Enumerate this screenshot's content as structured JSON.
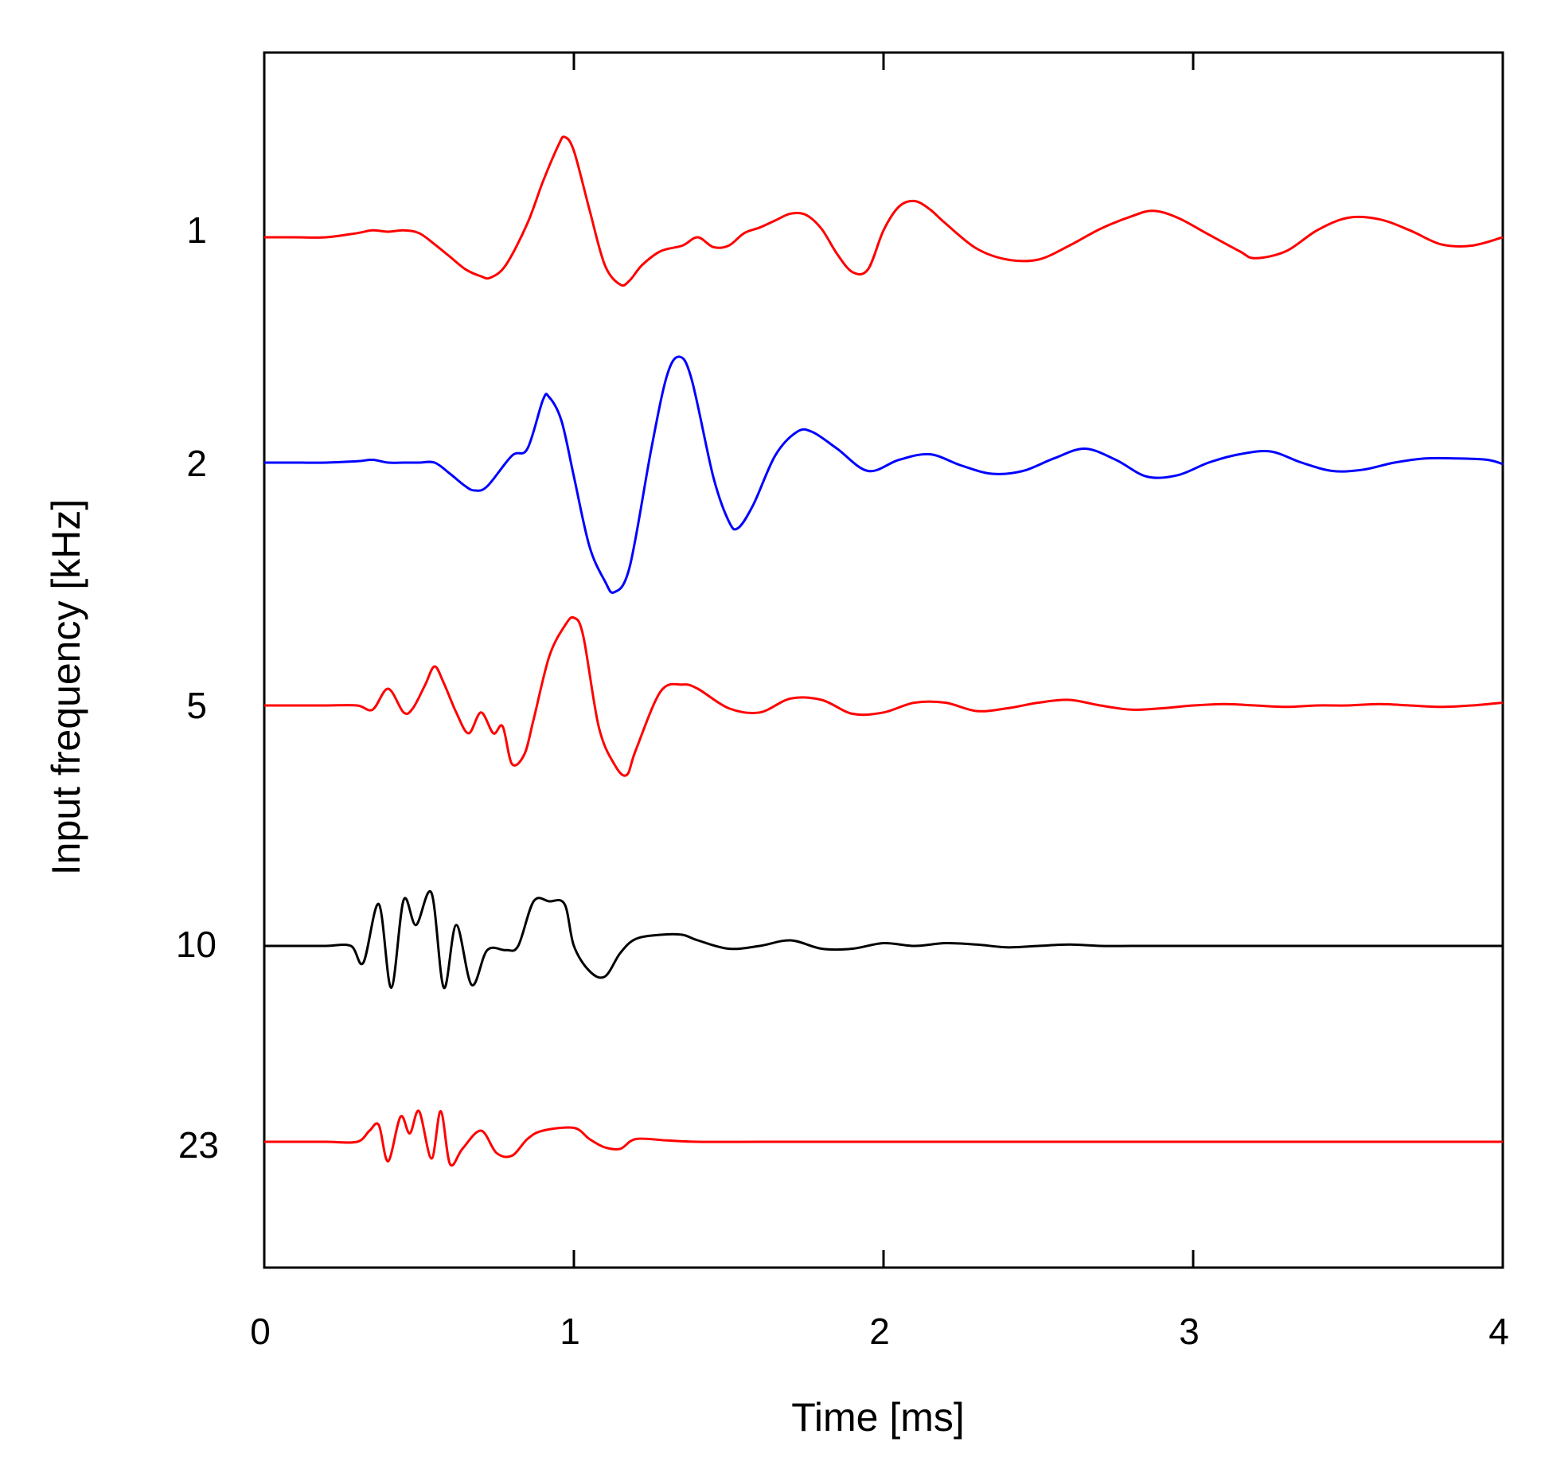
{
  "chart_data": {
    "type": "line",
    "title": "",
    "xlabel": "Time [ms]",
    "ylabel": "Input frequency [kHz]",
    "xlim": [
      0,
      4
    ],
    "x_ticks": [
      "0",
      "1",
      "2",
      "3",
      "4"
    ],
    "grid": false,
    "legend": "none",
    "series": [
      {
        "name": "1",
        "color": "#ff0000",
        "x": [
          0,
          0.1,
          0.2,
          0.3,
          0.35,
          0.4,
          0.45,
          0.5,
          0.55,
          0.6,
          0.65,
          0.7,
          0.73,
          0.78,
          0.85,
          0.9,
          0.95,
          0.97,
          1.0,
          1.05,
          1.1,
          1.15,
          1.18,
          1.22,
          1.28,
          1.35,
          1.4,
          1.45,
          1.5,
          1.55,
          1.6,
          1.65,
          1.7,
          1.75,
          1.8,
          1.85,
          1.9,
          1.95,
          2.0,
          2.05,
          2.1,
          2.15,
          2.2,
          2.3,
          2.4,
          2.5,
          2.6,
          2.7,
          2.8,
          2.87,
          2.95,
          3.05,
          3.15,
          3.2,
          3.3,
          3.4,
          3.5,
          3.6,
          3.7,
          3.8,
          3.9,
          4.0
        ],
        "values": [
          0,
          0,
          0,
          0.03,
          0.05,
          0.04,
          0.05,
          0.03,
          -0.05,
          -0.14,
          -0.23,
          -0.28,
          -0.29,
          -0.2,
          0.1,
          0.4,
          0.66,
          0.72,
          0.62,
          0.2,
          -0.2,
          -0.34,
          -0.31,
          -0.2,
          -0.1,
          -0.06,
          0,
          -0.07,
          -0.06,
          0.03,
          0.07,
          0.12,
          0.17,
          0.16,
          0.06,
          -0.12,
          -0.25,
          -0.23,
          0.05,
          0.22,
          0.26,
          0.2,
          0.1,
          -0.08,
          -0.16,
          -0.16,
          -0.06,
          0.06,
          0.15,
          0.19,
          0.14,
          0.02,
          -0.1,
          -0.15,
          -0.1,
          0.05,
          0.14,
          0.13,
          0.05,
          -0.05,
          -0.06,
          0
        ]
      },
      {
        "name": "2",
        "color": "#0000ff",
        "x": [
          0,
          0.1,
          0.2,
          0.3,
          0.35,
          0.4,
          0.45,
          0.5,
          0.55,
          0.6,
          0.65,
          0.68,
          0.72,
          0.8,
          0.85,
          0.9,
          0.92,
          0.96,
          1.0,
          1.05,
          1.1,
          1.13,
          1.18,
          1.25,
          1.3,
          1.34,
          1.38,
          1.45,
          1.5,
          1.53,
          1.58,
          1.65,
          1.72,
          1.77,
          1.85,
          1.95,
          2.05,
          2.15,
          2.25,
          2.35,
          2.45,
          2.55,
          2.65,
          2.75,
          2.85,
          2.95,
          3.05,
          3.15,
          3.25,
          3.35,
          3.45,
          3.55,
          3.65,
          3.75,
          3.85,
          3.95,
          4.0
        ],
        "values": [
          0,
          0,
          0,
          0.01,
          0.02,
          0,
          0,
          0,
          0,
          -0.08,
          -0.17,
          -0.2,
          -0.17,
          0.05,
          0.1,
          0.45,
          0.47,
          0.3,
          -0.1,
          -0.6,
          -0.85,
          -0.93,
          -0.75,
          0.1,
          0.62,
          0.76,
          0.6,
          -0.1,
          -0.42,
          -0.47,
          -0.3,
          0.05,
          0.22,
          0.22,
          0.1,
          -0.06,
          0.02,
          0.06,
          -0.02,
          -0.08,
          -0.06,
          0.03,
          0.1,
          0.02,
          -0.1,
          -0.09,
          0,
          0.06,
          0.08,
          0.0,
          -0.06,
          -0.05,
          0,
          0.03,
          0.03,
          0.02,
          -0.01
        ]
      },
      {
        "name": "5",
        "color": "#ff0000",
        "x": [
          0,
          0.1,
          0.2,
          0.3,
          0.35,
          0.4,
          0.45,
          0.48,
          0.52,
          0.55,
          0.58,
          0.62,
          0.66,
          0.7,
          0.74,
          0.77,
          0.8,
          0.84,
          0.87,
          0.92,
          0.97,
          1.0,
          1.03,
          1.08,
          1.13,
          1.17,
          1.2,
          1.28,
          1.35,
          1.4,
          1.5,
          1.6,
          1.7,
          1.8,
          1.9,
          2.0,
          2.1,
          2.2,
          2.3,
          2.4,
          2.5,
          2.6,
          2.7,
          2.8,
          2.9,
          3.0,
          3.1,
          3.2,
          3.3,
          3.4,
          3.5,
          3.6,
          3.7,
          3.8,
          3.9,
          4.0
        ],
        "values": [
          0,
          0,
          0,
          0,
          -0.03,
          0.12,
          -0.05,
          -0.02,
          0.15,
          0.28,
          0.16,
          -0.05,
          -0.2,
          -0.05,
          -0.2,
          -0.15,
          -0.42,
          -0.35,
          -0.1,
          0.35,
          0.57,
          0.63,
          0.5,
          -0.15,
          -0.42,
          -0.5,
          -0.32,
          0.1,
          0.15,
          0.12,
          -0.02,
          -0.05,
          0.05,
          0.04,
          -0.06,
          -0.05,
          0.02,
          0.02,
          -0.04,
          -0.02,
          0.02,
          0.04,
          0,
          -0.03,
          -0.02,
          0,
          0.01,
          0,
          -0.01,
          0,
          0,
          0.01,
          0,
          -0.01,
          0,
          0.02
        ]
      },
      {
        "name": "10",
        "color": "#000000",
        "x": [
          0,
          0.1,
          0.2,
          0.28,
          0.32,
          0.37,
          0.41,
          0.45,
          0.49,
          0.54,
          0.58,
          0.62,
          0.67,
          0.72,
          0.78,
          0.82,
          0.87,
          0.92,
          0.97,
          1.0,
          1.05,
          1.1,
          1.15,
          1.2,
          1.28,
          1.35,
          1.4,
          1.5,
          1.6,
          1.7,
          1.8,
          1.9,
          2.0,
          2.1,
          2.2,
          2.3,
          2.4,
          2.5,
          2.6,
          2.7,
          2.8,
          2.9,
          3.0,
          3.1,
          3.2,
          3.3,
          3.4,
          3.5,
          3.6,
          3.7,
          3.8,
          3.9,
          4.0
        ],
        "values": [
          0,
          0,
          0,
          0,
          -0.12,
          0.3,
          -0.3,
          0.33,
          0.15,
          0.38,
          -0.3,
          0.15,
          -0.28,
          -0.03,
          -0.03,
          0.0,
          0.32,
          0.32,
          0.3,
          0.0,
          -0.18,
          -0.22,
          -0.05,
          0.05,
          0.08,
          0.08,
          0.04,
          -0.02,
          0.0,
          0.04,
          -0.02,
          -0.02,
          0.02,
          0.0,
          0.02,
          0.01,
          -0.01,
          0,
          0.01,
          0,
          0,
          0,
          0,
          0,
          0,
          0,
          0,
          0,
          0,
          0,
          0,
          0,
          0
        ]
      },
      {
        "name": "23",
        "color": "#ff0000",
        "x": [
          0,
          0.1,
          0.2,
          0.3,
          0.34,
          0.37,
          0.4,
          0.44,
          0.47,
          0.5,
          0.54,
          0.57,
          0.6,
          0.64,
          0.7,
          0.75,
          0.8,
          0.85,
          0.9,
          1.0,
          1.05,
          1.1,
          1.15,
          1.2,
          1.3,
          1.4,
          1.6,
          1.8,
          2.0,
          2.2,
          2.4,
          2.6,
          2.8,
          3.0,
          3.2,
          3.4,
          3.6,
          3.8,
          4.0
        ],
        "values": [
          0,
          0,
          0,
          0,
          0.08,
          0.12,
          -0.14,
          0.18,
          0.06,
          0.22,
          -0.12,
          0.22,
          -0.16,
          -0.05,
          0.08,
          -0.08,
          -0.1,
          0.02,
          0.08,
          0.1,
          0.02,
          -0.04,
          -0.05,
          0.02,
          0.01,
          0,
          0,
          0,
          0,
          0,
          0,
          0,
          0,
          0,
          0,
          0,
          0,
          0,
          0
        ]
      }
    ]
  }
}
